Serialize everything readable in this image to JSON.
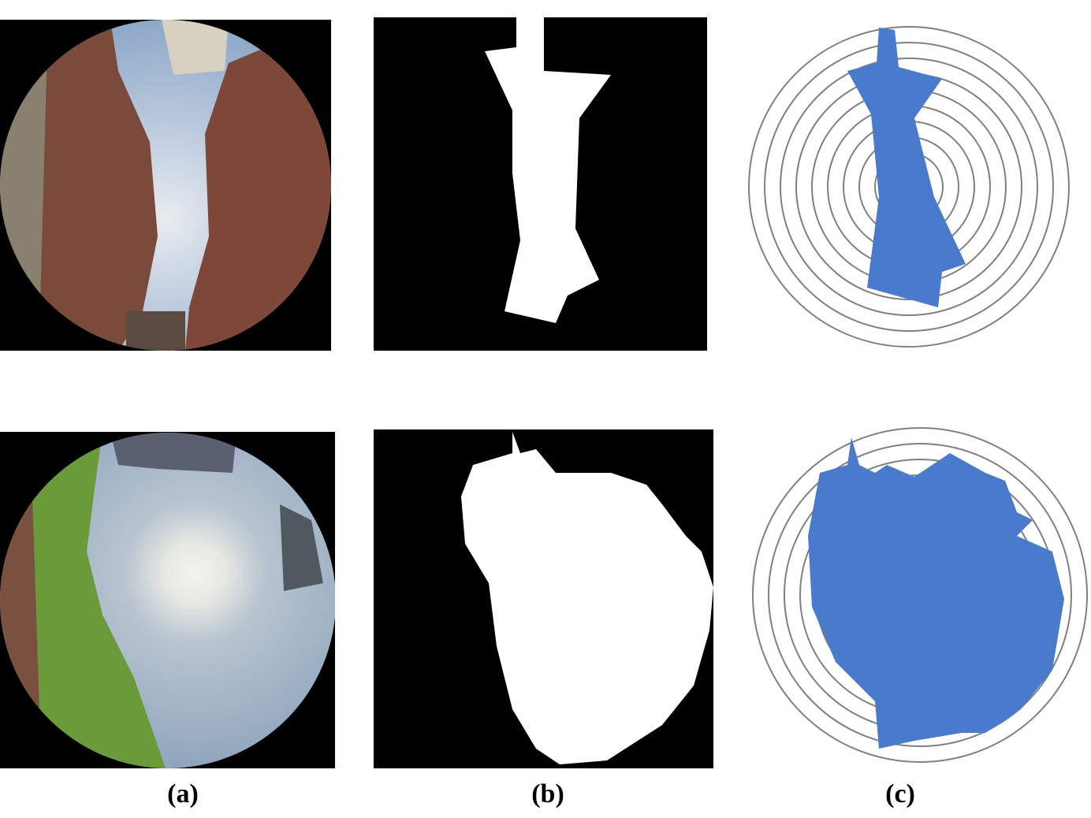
{
  "panel_labels": [
    "(a)",
    "(b)",
    "(c)"
  ]
}
